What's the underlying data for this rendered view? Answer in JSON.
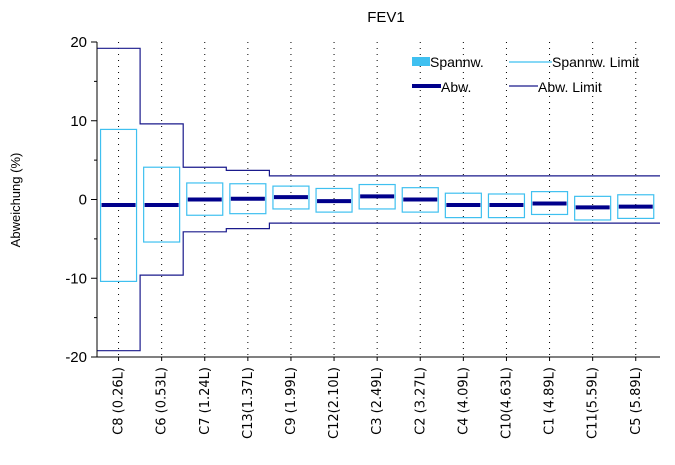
{
  "chart_data": {
    "type": "box",
    "title": "FEV1",
    "ylabel": "Abweichung (%)",
    "xlabel": "",
    "ylim": [
      -20,
      20
    ],
    "yticks": [
      -20,
      -10,
      0,
      10,
      20
    ],
    "categories": [
      "C8 (0.26L)",
      "C6 (0.53L)",
      "C7 (1.24L)",
      "C13(1.37L)",
      "C9 (1.99L)",
      "C12(2.10L)",
      "C3 (2.49L)",
      "C2 (3.27L)",
      "C4 (4.09L)",
      "C10(4.63L)",
      "C1 (4.89L)",
      "C11(5.59L)",
      "C5 (5.89L)"
    ],
    "series": [
      {
        "name": "Spannw.",
        "kind": "range-box",
        "lower": [
          -10.4,
          -5.4,
          -2.0,
          -1.8,
          -1.2,
          -1.6,
          -1.2,
          -1.6,
          -2.3,
          -2.3,
          -1.9,
          -2.6,
          -2.4
        ],
        "upper": [
          8.9,
          4.1,
          2.1,
          2.0,
          1.7,
          1.4,
          1.9,
          1.5,
          0.8,
          0.7,
          1.0,
          0.4,
          0.6
        ]
      },
      {
        "name": "Spannw. Limit",
        "kind": "step-line"
      },
      {
        "name": "Abw.",
        "kind": "mean-bar",
        "values": [
          -0.7,
          -0.7,
          0.0,
          0.1,
          0.3,
          -0.2,
          0.4,
          0.0,
          -0.7,
          -0.7,
          -0.5,
          -1.0,
          -0.9
        ]
      },
      {
        "name": "Abw. Limit",
        "kind": "step-line",
        "upper": [
          19.2,
          9.6,
          4.1,
          3.7,
          3.0,
          3.0,
          3.0,
          3.0,
          3.0,
          3.0,
          3.0,
          3.0,
          3.0
        ],
        "lower": [
          -19.2,
          -9.6,
          -4.1,
          -3.7,
          -3.0,
          -3.0,
          -3.0,
          -3.0,
          -3.0,
          -3.0,
          -3.0,
          -3.0,
          -3.0
        ]
      }
    ],
    "grid": "vertical-dotted",
    "legend": "top-right",
    "colors": {
      "box": "#3fc0f0",
      "mean": "#00008b",
      "limit": "#1a1a8c",
      "grid": "#000000"
    }
  }
}
